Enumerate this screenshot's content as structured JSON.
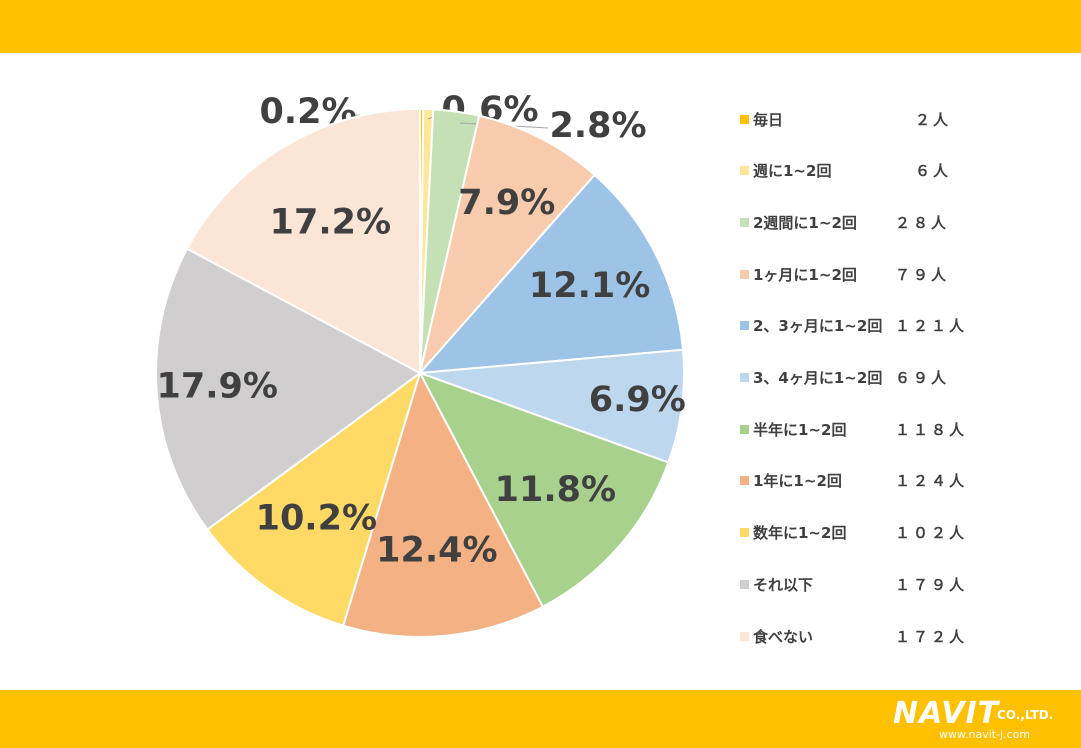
{
  "chart_data": {
    "type": "pie",
    "slices": [
      {
        "label": "毎日",
        "count": "２人",
        "percent": 0.2,
        "percent_label": "0.2%",
        "color": "#ffc000"
      },
      {
        "label": "週に1~2回",
        "count": "６人",
        "percent": 0.6,
        "percent_label": "0.6%",
        "color": "#ffe699"
      },
      {
        "label": "2週間に1~2回",
        "count": "２８人",
        "percent": 2.8,
        "percent_label": "2.8%",
        "color": "#c5e0b4"
      },
      {
        "label": "1ヶ月に1~2回",
        "count": "７９人",
        "percent": 7.9,
        "percent_label": "7.9%",
        "color": "#f8cbad"
      },
      {
        "label": "2、3ヶ月に1~2回",
        "count": "１２１人",
        "percent": 12.1,
        "percent_label": "12.1%",
        "color": "#9dc3e6"
      },
      {
        "label": "3、4ヶ月に1~2回",
        "count": "６９人",
        "percent": 6.9,
        "percent_label": "6.9%",
        "color": "#bdd7ee"
      },
      {
        "label": "半年に1~2回",
        "count": "１１８人",
        "percent": 11.8,
        "percent_label": "11.8%",
        "color": "#a9d18e"
      },
      {
        "label": "1年に1~2回",
        "count": "１２４人",
        "percent": 12.4,
        "percent_label": "12.4%",
        "color": "#f4b183"
      },
      {
        "label": "数年に1~2回",
        "count": "１０２人",
        "percent": 10.2,
        "percent_label": "10.2%",
        "color": "#ffd966"
      },
      {
        "label": "それ以下",
        "count": "１７９人",
        "percent": 17.9,
        "percent_label": "17.9%",
        "color": "#d0cece"
      },
      {
        "label": "食べない",
        "count": "１７２人",
        "percent": 17.2,
        "percent_label": "17.2%",
        "color": "#fbe5d6"
      }
    ],
    "legend_position": "right"
  },
  "branding": {
    "logo_text": "NAVIT",
    "company_suffix": "CO.,LTD.",
    "url": "www.navit-j.com"
  },
  "colors": {
    "accent_band": "#ffc000",
    "label_text": "#404040"
  }
}
